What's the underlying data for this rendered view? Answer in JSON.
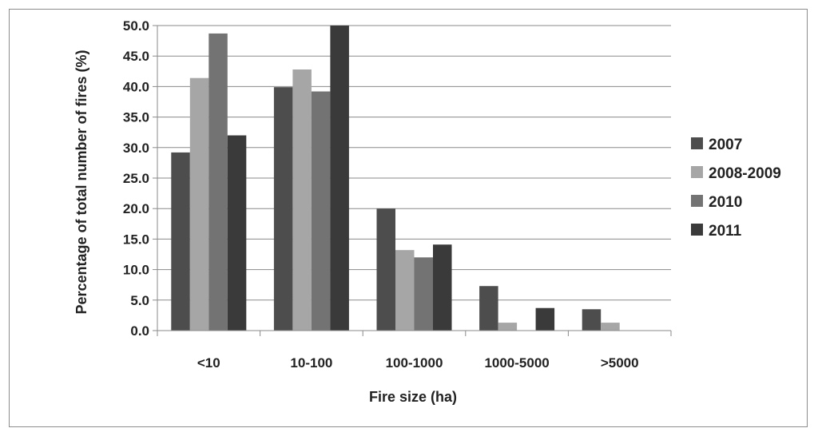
{
  "chart_data": {
    "type": "bar",
    "title": "",
    "xlabel": "Fire size (ha)",
    "ylabel": "Percentage of total number of fires (%)",
    "categories": [
      "<10",
      "10-100",
      "100-1000",
      "1000-5000",
      ">5000"
    ],
    "ylim": [
      0,
      50
    ],
    "yticks": [
      "0.0",
      "5.0",
      "10.0",
      "15.0",
      "20.0",
      "25.0",
      "30.0",
      "35.0",
      "40.0",
      "45.0",
      "50.0"
    ],
    "grid": true,
    "legend_position": "right",
    "series": [
      {
        "name": "2007",
        "color": "#4d4d4d",
        "values": [
          29.2,
          39.9,
          20.0,
          7.3,
          3.5
        ]
      },
      {
        "name": "2008-2009",
        "color": "#a6a6a6",
        "values": [
          41.4,
          42.8,
          13.2,
          1.3,
          1.3
        ]
      },
      {
        "name": "2010",
        "color": "#737373",
        "values": [
          48.7,
          39.2,
          12.0,
          0,
          0
        ]
      },
      {
        "name": "2011",
        "color": "#3a3a3a",
        "values": [
          32.0,
          50.0,
          14.1,
          3.7,
          0
        ]
      }
    ]
  }
}
